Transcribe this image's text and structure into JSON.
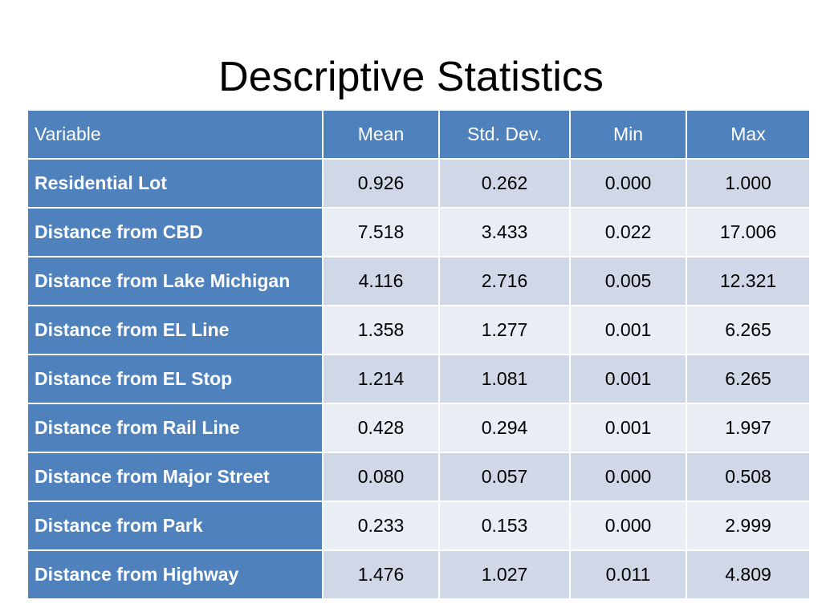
{
  "slide": {
    "title": "Descriptive Statistics"
  },
  "table": {
    "columns": [
      "Variable",
      "Mean",
      "Std.  Dev.",
      "Min",
      "Max"
    ],
    "rows": [
      {
        "variable": "Residential Lot",
        "mean": "0.926",
        "std_dev": "0.262",
        "min": "0.000",
        "max": "1.000"
      },
      {
        "variable": "Distance from CBD",
        "mean": "7.518",
        "std_dev": "3.433",
        "min": "0.022",
        "max": "17.006"
      },
      {
        "variable": "Distance from Lake Michigan",
        "mean": "4.116",
        "std_dev": "2.716",
        "min": "0.005",
        "max": "12.321"
      },
      {
        "variable": "Distance from EL Line",
        "mean": "1.358",
        "std_dev": "1.277",
        "min": "0.001",
        "max": "6.265"
      },
      {
        "variable": "Distance from EL Stop",
        "mean": "1.214",
        "std_dev": "1.081",
        "min": "0.001",
        "max": "6.265"
      },
      {
        "variable": "Distance from Rail Line",
        "mean": "0.428",
        "std_dev": "0.294",
        "min": "0.001",
        "max": "1.997"
      },
      {
        "variable": "Distance from Major Street",
        "mean": "0.080",
        "std_dev": "0.057",
        "min": "0.000",
        "max": "0.508"
      },
      {
        "variable": "Distance from Park",
        "mean": "0.233",
        "std_dev": "0.153",
        "min": "0.000",
        "max": "2.999"
      },
      {
        "variable": "Distance from Highway",
        "mean": "1.476",
        "std_dev": "1.027",
        "min": "0.011",
        "max": "4.809"
      }
    ]
  },
  "colors": {
    "header_blue": "#4f81bd",
    "row_band_dark": "#d0d8e8",
    "row_band_light": "#e9edf4"
  }
}
